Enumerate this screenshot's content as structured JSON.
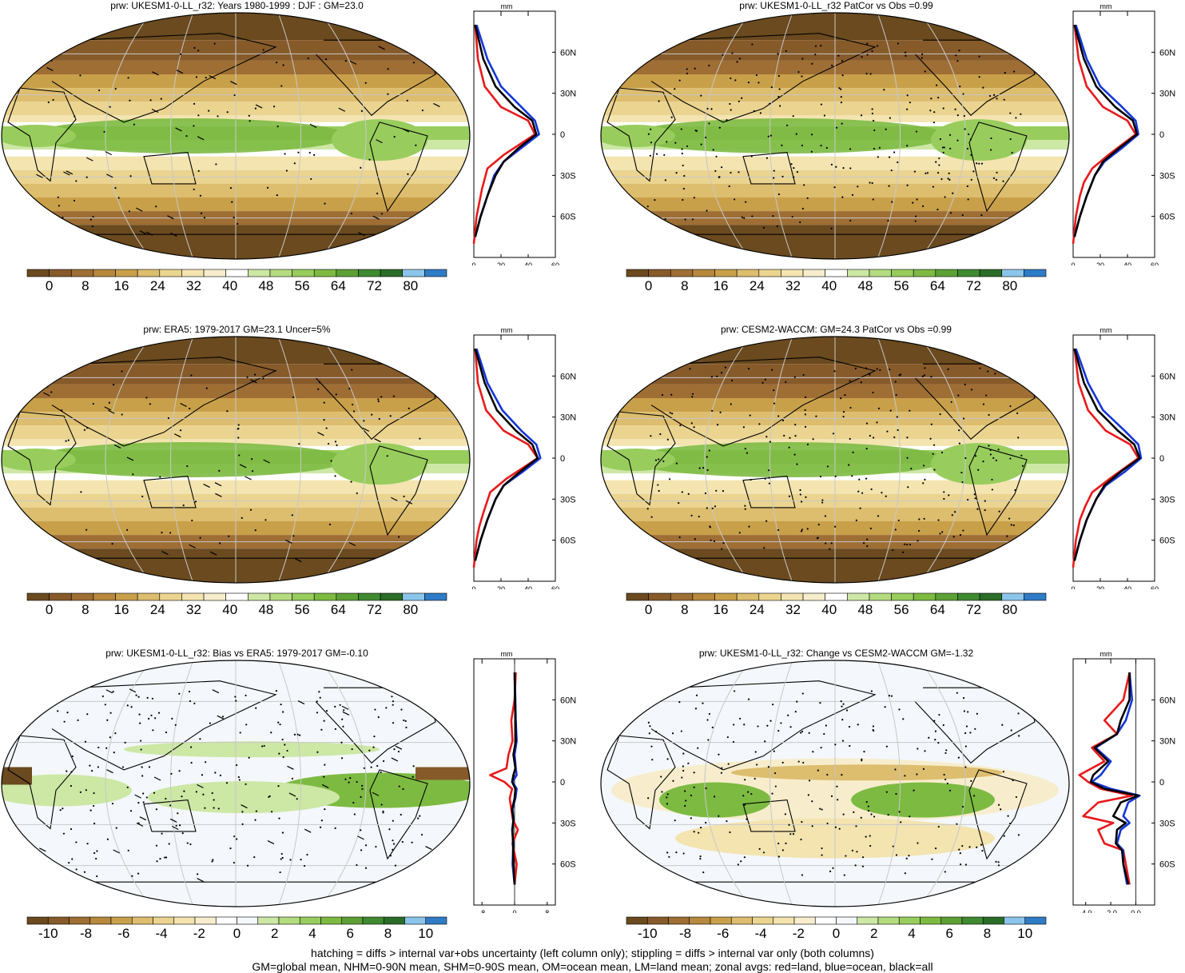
{
  "colors": {
    "abs_scale": [
      "#6a4a1e",
      "#875a2a",
      "#9e6e34",
      "#b7883e",
      "#c9a04a",
      "#ddbd6e",
      "#ead48f",
      "#f3e4b0",
      "#f7edcc",
      "#ffffff",
      "#cde7a5",
      "#b4db7f",
      "#98cd5d",
      "#7dba42",
      "#5da035",
      "#3f8a31",
      "#2b6d28",
      "#8cc5eb",
      "#2f7bc6"
    ],
    "diff_scale": [
      "#6a4a1e",
      "#875a2a",
      "#9e6e34",
      "#b7883e",
      "#c9a04a",
      "#ddbd6e",
      "#ead48f",
      "#f3e4b0",
      "#f7edcc",
      "#ffffff",
      "#f4f7fb",
      "#cde7a5",
      "#b4db7f",
      "#98cd5d",
      "#7dba42",
      "#5da035",
      "#3f8a31",
      "#2b6d28",
      "#8cc5eb",
      "#2f7bc6"
    ],
    "land_line": "#e8191c",
    "ocean_line": "#1436d6",
    "all_line": "#000000"
  },
  "panels": [
    {
      "id": "p1",
      "title": "prw: UKESM1-0-LL_r32: Years 1980-1999 : DJF : GM=23.0",
      "type": "abs",
      "cbar_labels": [
        "0",
        "8",
        "16",
        "24",
        "32",
        "40",
        "48",
        "56",
        "64",
        "72",
        "80"
      ],
      "zonal": {
        "unit": "mm",
        "x_ticks": [
          "0",
          "20",
          "40",
          "60"
        ],
        "y_ticks": [
          "60N",
          "30N",
          "0",
          "30S",
          "60S"
        ]
      }
    },
    {
      "id": "p2",
      "title": "prw: UKESM1-0-LL_r32 PatCor vs Obs =0.99",
      "type": "abs",
      "cbar_labels": [
        "0",
        "8",
        "16",
        "24",
        "32",
        "40",
        "48",
        "56",
        "64",
        "72",
        "80"
      ],
      "zonal": {
        "unit": "mm",
        "x_ticks": [
          "0",
          "20",
          "40",
          "60"
        ],
        "y_ticks": [
          "60N",
          "30N",
          "0",
          "30S",
          "60S"
        ]
      }
    },
    {
      "id": "p3",
      "title": "prw: ERA5: 1979-2017 GM=23.1 Uncer=5%",
      "type": "abs",
      "cbar_labels": [
        "0",
        "8",
        "16",
        "24",
        "32",
        "40",
        "48",
        "56",
        "64",
        "72",
        "80"
      ],
      "zonal": {
        "unit": "mm",
        "x_ticks": [
          "0",
          "20",
          "40",
          "60"
        ],
        "y_ticks": [
          "60N",
          "30N",
          "0",
          "30S",
          "60S"
        ]
      }
    },
    {
      "id": "p4",
      "title": "prw: CESM2-WACCM: GM=24.3 PatCor vs Obs =0.99",
      "type": "abs",
      "cbar_labels": [
        "0",
        "8",
        "16",
        "24",
        "32",
        "40",
        "48",
        "56",
        "64",
        "72",
        "80"
      ],
      "zonal": {
        "unit": "mm",
        "x_ticks": [
          "0",
          "20",
          "40",
          "60"
        ],
        "y_ticks": [
          "60N",
          "30N",
          "0",
          "30S",
          "60S"
        ]
      }
    },
    {
      "id": "p5",
      "title": "prw: UKESM1-0-LL_r32: Bias vs ERA5: 1979-2017 GM=-0.10",
      "type": "diff",
      "cbar_labels": [
        "-10",
        "-8",
        "-6",
        "-4",
        "-2",
        "0",
        "2",
        "4",
        "6",
        "8",
        "10"
      ],
      "zonal": {
        "unit": "mm",
        "x_ticks": [
          "-8",
          "0",
          "8"
        ],
        "y_ticks": [
          "60N",
          "30N",
          "0",
          "30S",
          "60S"
        ]
      }
    },
    {
      "id": "p6",
      "title": "prw: UKESM1-0-LL_r32: Change vs CESM2-WACCM GM=-1.32",
      "type": "diff",
      "cbar_labels": [
        "-10",
        "-8",
        "-6",
        "-4",
        "-2",
        "0",
        "2",
        "4",
        "6",
        "8",
        "10"
      ],
      "zonal": {
        "unit": "mm",
        "x_ticks": [
          "-4.0",
          "-2.0",
          "0.0"
        ],
        "y_ticks": [
          "60N",
          "30N",
          "0",
          "30S",
          "60S"
        ]
      }
    }
  ],
  "chart_data": [
    {
      "type": "line",
      "title": "prw: UKESM1-0-LL_r32: Years 1980-1999 : DJF : GM=23.0",
      "xlabel": "mm",
      "xlim": [
        0,
        60
      ],
      "ylim": [
        -90,
        90
      ],
      "series": [
        {
          "name": "red=land",
          "x": [
            0,
            2,
            4,
            6,
            10,
            22,
            45,
            40,
            20,
            8,
            3,
            1
          ],
          "y": [
            -80,
            -60,
            -50,
            -40,
            -25,
            -15,
            0,
            10,
            20,
            35,
            55,
            80
          ]
        },
        {
          "name": "blue=ocean",
          "x": [
            1,
            5,
            10,
            15,
            22,
            35,
            48,
            45,
            35,
            20,
            10,
            2
          ],
          "y": [
            -75,
            -60,
            -45,
            -30,
            -20,
            -10,
            0,
            10,
            20,
            35,
            55,
            80
          ]
        },
        {
          "name": "black=all",
          "x": [
            1,
            5,
            10,
            16,
            22,
            33,
            46,
            43,
            30,
            16,
            7,
            1
          ],
          "y": [
            -75,
            -60,
            -45,
            -30,
            -20,
            -10,
            0,
            10,
            20,
            35,
            55,
            80
          ]
        }
      ]
    },
    {
      "type": "line",
      "title": "prw: UKESM1-0-LL_r32 PatCor vs Obs =0.99",
      "xlabel": "mm",
      "xlim": [
        0,
        60
      ],
      "ylim": [
        -90,
        90
      ],
      "series": [
        {
          "name": "red=land",
          "x": [
            0,
            2,
            5,
            8,
            14,
            26,
            46,
            40,
            22,
            10,
            4,
            1
          ],
          "y": [
            -80,
            -60,
            -45,
            -35,
            -25,
            -15,
            0,
            10,
            20,
            35,
            55,
            80
          ]
        },
        {
          "name": "blue=ocean",
          "x": [
            1,
            5,
            10,
            16,
            23,
            36,
            48,
            46,
            36,
            20,
            10,
            2
          ],
          "y": [
            -75,
            -60,
            -45,
            -30,
            -20,
            -10,
            0,
            10,
            20,
            35,
            55,
            80
          ]
        },
        {
          "name": "black=all",
          "x": [
            1,
            5,
            10,
            16,
            22,
            34,
            47,
            44,
            31,
            17,
            8,
            1
          ],
          "y": [
            -75,
            -60,
            -45,
            -30,
            -20,
            -10,
            0,
            10,
            20,
            35,
            55,
            80
          ]
        }
      ]
    },
    {
      "type": "line",
      "title": "prw: ERA5: 1979-2017 GM=23.1 Uncer=5%",
      "xlabel": "mm",
      "xlim": [
        0,
        60
      ],
      "ylim": [
        -90,
        90
      ],
      "series": [
        {
          "name": "red=land",
          "x": [
            0,
            2,
            4,
            7,
            12,
            24,
            47,
            40,
            22,
            9,
            3,
            1
          ],
          "y": [
            -80,
            -60,
            -50,
            -40,
            -25,
            -15,
            0,
            10,
            20,
            35,
            55,
            80
          ]
        },
        {
          "name": "blue=ocean",
          "x": [
            1,
            5,
            10,
            16,
            22,
            36,
            49,
            46,
            35,
            21,
            10,
            2
          ],
          "y": [
            -75,
            -60,
            -45,
            -30,
            -20,
            -10,
            0,
            10,
            20,
            35,
            55,
            80
          ]
        },
        {
          "name": "black=all",
          "x": [
            1,
            5,
            10,
            16,
            22,
            34,
            47,
            43,
            31,
            17,
            8,
            1
          ],
          "y": [
            -75,
            -60,
            -45,
            -30,
            -20,
            -10,
            0,
            10,
            20,
            35,
            55,
            80
          ]
        }
      ]
    },
    {
      "type": "line",
      "title": "prw: CESM2-WACCM: GM=24.3 PatCor vs Obs =0.99",
      "xlabel": "mm",
      "xlim": [
        0,
        60
      ],
      "ylim": [
        -90,
        90
      ],
      "series": [
        {
          "name": "red=land",
          "x": [
            0,
            2,
            5,
            9,
            14,
            27,
            48,
            42,
            24,
            11,
            4,
            1
          ],
          "y": [
            -80,
            -60,
            -45,
            -35,
            -25,
            -15,
            0,
            10,
            20,
            35,
            55,
            80
          ]
        },
        {
          "name": "blue=ocean",
          "x": [
            1,
            5,
            10,
            17,
            24,
            38,
            50,
            48,
            38,
            22,
            11,
            2
          ],
          "y": [
            -75,
            -60,
            -45,
            -30,
            -20,
            -10,
            0,
            10,
            20,
            35,
            55,
            80
          ]
        },
        {
          "name": "black=all",
          "x": [
            1,
            5,
            10,
            17,
            23,
            35,
            49,
            45,
            33,
            18,
            8,
            1
          ],
          "y": [
            -75,
            -60,
            -45,
            -30,
            -20,
            -10,
            0,
            10,
            20,
            35,
            55,
            80
          ]
        }
      ]
    },
    {
      "type": "line",
      "title": "prw: UKESM1-0-LL_r32: Bias vs ERA5: 1979-2017 GM=-0.10",
      "xlabel": "mm",
      "xlim": [
        -10,
        10
      ],
      "ylim": [
        -90,
        90
      ],
      "series": [
        {
          "name": "red=land",
          "x": [
            0,
            0.5,
            -0.5,
            0.8,
            -0.4,
            -0.8,
            -1.2,
            -0.6,
            -2.5,
            -6,
            -2,
            -1.5,
            -0.5,
            -0.8,
            0,
            0.3
          ],
          "y": [
            -75,
            -60,
            -45,
            -35,
            -28,
            -20,
            -12,
            -5,
            0,
            5,
            10,
            20,
            30,
            45,
            60,
            80
          ]
        },
        {
          "name": "blue=ocean",
          "x": [
            0,
            -0.5,
            -0.3,
            -0.6,
            -0.3,
            -0.5,
            0.2,
            0.5,
            -0.5,
            0.5,
            0.3,
            0,
            0.5,
            0.3,
            0.2,
            0
          ],
          "y": [
            -75,
            -60,
            -45,
            -35,
            -28,
            -20,
            -12,
            -5,
            0,
            5,
            10,
            20,
            30,
            45,
            60,
            80
          ]
        },
        {
          "name": "black=all",
          "x": [
            0,
            -0.3,
            -0.4,
            -0.5,
            -0.3,
            -0.6,
            0,
            0.2,
            -0.6,
            -0.3,
            0.2,
            -0.3,
            0.3,
            0.2,
            0.1,
            0
          ],
          "y": [
            -75,
            -60,
            -45,
            -35,
            -28,
            -20,
            -12,
            -5,
            0,
            5,
            10,
            20,
            30,
            45,
            60,
            80
          ]
        }
      ]
    },
    {
      "type": "line",
      "title": "prw: UKESM1-0-LL_r32: Change vs CESM2-WACCM GM=-1.32",
      "xlabel": "mm",
      "xlim": [
        -5,
        1.5
      ],
      "ylim": [
        -90,
        90
      ],
      "series": [
        {
          "name": "red=land",
          "x": [
            -0.5,
            -0.8,
            -1,
            -2.5,
            -3,
            -1.8,
            -4.2,
            -3,
            -0.3,
            -2.8,
            -3.8,
            -4.5,
            -2.5,
            -3.5,
            -1.5,
            -2.5,
            -1,
            -0.5
          ],
          "y": [
            -75,
            -60,
            -50,
            -45,
            -35,
            -30,
            -25,
            -15,
            -10,
            -5,
            0,
            5,
            15,
            25,
            35,
            45,
            60,
            80
          ]
        },
        {
          "name": "blue=ocean",
          "x": [
            -0.7,
            -1,
            -1,
            -1.5,
            -1.2,
            -0.5,
            -1,
            -0.6,
            0.3,
            -2,
            -3.5,
            -2.8,
            -2,
            -3.2,
            -1.5,
            -0.8,
            -0.3,
            -0.5
          ],
          "y": [
            -75,
            -60,
            -50,
            -45,
            -35,
            -30,
            -25,
            -15,
            -10,
            -5,
            0,
            5,
            15,
            25,
            35,
            45,
            60,
            80
          ]
        },
        {
          "name": "black=all",
          "x": [
            -0.6,
            -1,
            -1.1,
            -1.6,
            -1.5,
            -0.8,
            -1.8,
            -1.2,
            0.2,
            -2.5,
            -3.6,
            -3.4,
            -2.2,
            -3.3,
            -1.5,
            -1.2,
            -0.5,
            -0.5
          ],
          "y": [
            -75,
            -60,
            -50,
            -45,
            -35,
            -30,
            -25,
            -15,
            -10,
            -5,
            0,
            5,
            15,
            25,
            35,
            45,
            60,
            80
          ]
        }
      ]
    }
  ],
  "footnote": {
    "line1": "hatching = diffs > internal var+obs uncertainty (left column only); stippling = diffs > internal var only (both columns)",
    "line2": "GM=global mean, NHM=0-90N mean, SHM=0-90S mean, OM=ocean mean, LM=land mean; zonal avgs: red=land, blue=ocean, black=all"
  }
}
